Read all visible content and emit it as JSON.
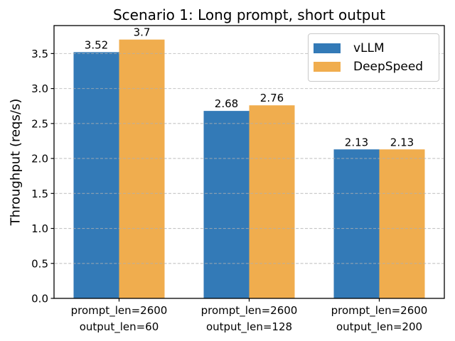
{
  "chart_data": {
    "type": "bar",
    "title": "Scenario 1: Long prompt, short output",
    "xlabel": "",
    "ylabel": "Throughput (reqs/s)",
    "categories": [
      "prompt_len=2600\noutput_len=60",
      "prompt_len=2600\noutput_len=128",
      "prompt_len=2600\noutput_len=200"
    ],
    "series": [
      {
        "name": "vLLM",
        "color": "#337ab7",
        "values": [
          3.52,
          2.68,
          2.13
        ]
      },
      {
        "name": "DeepSpeed",
        "color": "#f0ad4e",
        "values": [
          3.7,
          2.76,
          2.13
        ]
      }
    ],
    "bar_value_labels": [
      "3.52",
      "3.7",
      "2.68",
      "2.76",
      "2.13",
      "2.13"
    ],
    "ytick_labels": [
      "0.0",
      "0.5",
      "1.0",
      "1.5",
      "2.0",
      "2.5",
      "3.0",
      "3.5"
    ],
    "ylim": [
      0,
      3.9
    ],
    "grid": {
      "axis": "y",
      "style": "dashed",
      "color": "#b0b0b0"
    },
    "legend_position": "upper right",
    "frame_color": "#000000"
  }
}
